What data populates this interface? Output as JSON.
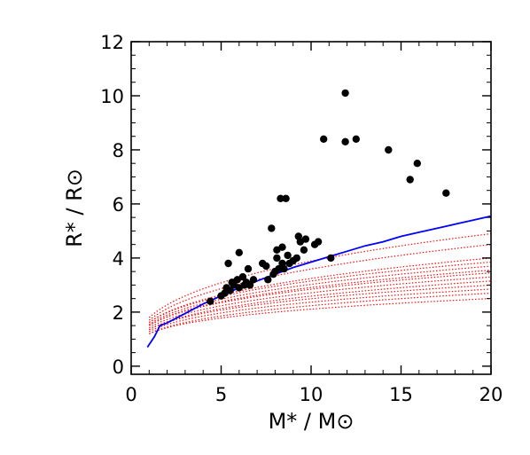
{
  "chart_data": {
    "type": "scatter",
    "title": "",
    "xlabel": "M* / M⊙",
    "ylabel": "R* / R⊙",
    "xlim": [
      0,
      20
    ],
    "ylim": [
      -0.3,
      12
    ],
    "xticks": [
      0,
      5,
      10,
      15,
      20
    ],
    "yticks": [
      0,
      2,
      4,
      6,
      8,
      10,
      12
    ],
    "xtick_labels": [
      "0",
      "5",
      "10",
      "15",
      "20"
    ],
    "ytick_labels": [
      "0",
      "2",
      "4",
      "6",
      "8",
      "10",
      "12"
    ],
    "grid": false,
    "legend": "none",
    "series": [
      {
        "kind": "scatter",
        "color": "#000000",
        "points": [
          [
            4.4,
            2.4
          ],
          [
            5.0,
            2.6
          ],
          [
            5.2,
            2.7
          ],
          [
            5.3,
            2.9
          ],
          [
            5.4,
            3.8
          ],
          [
            5.5,
            2.8
          ],
          [
            5.6,
            3.1
          ],
          [
            5.7,
            3.0
          ],
          [
            5.9,
            3.2
          ],
          [
            6.0,
            2.9
          ],
          [
            6.0,
            4.2
          ],
          [
            6.2,
            3.3
          ],
          [
            6.3,
            3.0
          ],
          [
            6.4,
            3.1
          ],
          [
            6.5,
            3.6
          ],
          [
            6.6,
            3.0
          ],
          [
            6.8,
            3.2
          ],
          [
            7.3,
            3.8
          ],
          [
            7.5,
            3.7
          ],
          [
            7.6,
            3.2
          ],
          [
            7.8,
            5.1
          ],
          [
            7.9,
            3.4
          ],
          [
            8.0,
            3.5
          ],
          [
            8.1,
            4.0
          ],
          [
            8.1,
            4.3
          ],
          [
            8.2,
            3.6
          ],
          [
            8.3,
            6.2
          ],
          [
            8.4,
            4.4
          ],
          [
            8.4,
            3.8
          ],
          [
            8.5,
            3.6
          ],
          [
            8.6,
            6.2
          ],
          [
            8.7,
            4.1
          ],
          [
            8.8,
            3.8
          ],
          [
            9.0,
            3.9
          ],
          [
            9.2,
            4.0
          ],
          [
            9.3,
            4.8
          ],
          [
            9.4,
            4.6
          ],
          [
            9.6,
            4.3
          ],
          [
            9.7,
            4.7
          ],
          [
            10.2,
            4.5
          ],
          [
            10.4,
            4.6
          ],
          [
            10.7,
            8.4
          ],
          [
            11.1,
            4.0
          ],
          [
            11.9,
            10.1
          ],
          [
            11.9,
            8.3
          ],
          [
            12.5,
            8.4
          ],
          [
            14.3,
            8.0
          ],
          [
            15.5,
            6.9
          ],
          [
            15.9,
            7.5
          ],
          [
            17.5,
            6.4
          ]
        ]
      },
      {
        "kind": "line",
        "color": "#0000ff",
        "points": [
          [
            0.9,
            0.7
          ],
          [
            1.3,
            1.1
          ],
          [
            1.6,
            1.5
          ],
          [
            2.0,
            1.6
          ],
          [
            3.0,
            1.95
          ],
          [
            4.0,
            2.3
          ],
          [
            5.0,
            2.6
          ],
          [
            6.0,
            2.9
          ],
          [
            7.0,
            3.15
          ],
          [
            8.0,
            3.4
          ],
          [
            9.0,
            3.65
          ],
          [
            10.0,
            3.85
          ],
          [
            11.0,
            4.05
          ],
          [
            12.0,
            4.25
          ],
          [
            13.0,
            4.45
          ],
          [
            14.0,
            4.6
          ],
          [
            15.0,
            4.8
          ],
          [
            16.0,
            4.95
          ],
          [
            17.0,
            5.1
          ],
          [
            18.0,
            5.25
          ],
          [
            19.0,
            5.4
          ],
          [
            20.0,
            5.55
          ]
        ]
      },
      {
        "kind": "dotted-curves",
        "color": "#ff0000",
        "x_start": 1.0,
        "x_end": 20.0,
        "y_at_x1": [
          1.2,
          1.28,
          1.35,
          1.42,
          1.5,
          1.55,
          1.62,
          1.7,
          1.8
        ],
        "y_at_x20": [
          2.5,
          2.7,
          2.85,
          3.0,
          3.15,
          3.3,
          3.45,
          3.55,
          3.7,
          3.85,
          4.0,
          4.5,
          4.9
        ]
      }
    ]
  }
}
